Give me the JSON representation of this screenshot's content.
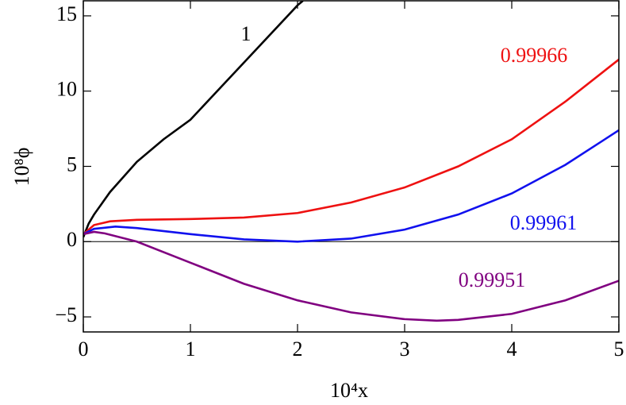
{
  "chart_data": {
    "type": "line",
    "xlabel": "10⁴x",
    "ylabel": "10⁸ϕ",
    "xlim": [
      0,
      5
    ],
    "ylim": [
      -6,
      16
    ],
    "xticks": [
      0,
      1,
      2,
      3,
      4,
      5
    ],
    "yticks": [
      {
        "value": -5,
        "label": "−5"
      },
      0,
      5,
      10,
      15
    ],
    "hline": 0,
    "series": [
      {
        "name": "1",
        "color": "#000000",
        "x": [
          0,
          0.05,
          0.1,
          0.25,
          0.5,
          0.75,
          1,
          1.5,
          2,
          2.05
        ],
        "values": [
          0.3,
          1.2,
          1.8,
          3.3,
          5.3,
          6.8,
          8.1,
          11.9,
          15.7,
          16
        ]
      },
      {
        "name": "0.99966",
        "color": "#ee1111",
        "x": [
          0,
          0.1,
          0.25,
          0.5,
          1,
          1.5,
          2,
          2.5,
          3,
          3.5,
          4,
          4.5,
          5
        ],
        "values": [
          0.5,
          1.1,
          1.35,
          1.45,
          1.5,
          1.6,
          1.9,
          2.6,
          3.6,
          5,
          6.8,
          9.3,
          12.1
        ]
      },
      {
        "name": "0.99961",
        "color": "#1111ee",
        "x": [
          0,
          0.1,
          0.3,
          0.5,
          1,
          1.5,
          2,
          2.5,
          3,
          3.5,
          4,
          4.5,
          5
        ],
        "values": [
          0.5,
          0.85,
          1.0,
          0.9,
          0.5,
          0.15,
          0.0,
          0.2,
          0.8,
          1.8,
          3.2,
          5.1,
          7.4
        ]
      },
      {
        "name": "0.99951",
        "color": "#800080",
        "x": [
          0,
          0.1,
          0.2,
          0.5,
          1,
          1.5,
          2,
          2.5,
          3,
          3.3,
          3.5,
          4,
          4.5,
          5
        ],
        "values": [
          0.5,
          0.65,
          0.55,
          0,
          -1.4,
          -2.8,
          -3.9,
          -4.7,
          -5.15,
          -5.25,
          -5.2,
          -4.8,
          -3.9,
          -2.6
        ]
      }
    ]
  }
}
